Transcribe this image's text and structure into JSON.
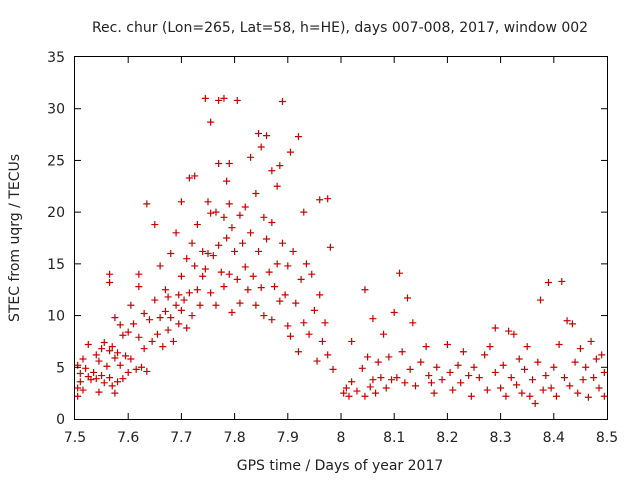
{
  "chart_data": {
    "type": "scatter",
    "title": "Rec. chur (Lon=265, Lat=58, h=HE), days 007-008, 2017, window 002",
    "xlabel": "GPS time / Days of year 2017",
    "ylabel": "STEC from uqrg / TECUs",
    "xlim": [
      7.5,
      8.5
    ],
    "ylim": [
      0,
      35
    ],
    "xticks": [
      7.5,
      7.6,
      7.7,
      7.8,
      7.9,
      8.0,
      8.1,
      8.2,
      8.3,
      8.4,
      8.5
    ],
    "xtick_labels": [
      "7.5",
      "7.6",
      "7.7",
      "7.8",
      "7.9",
      "8",
      "8.1",
      "8.2",
      "8.3",
      "8.4",
      "8.5"
    ],
    "yticks": [
      0,
      5,
      10,
      15,
      20,
      25,
      30,
      35
    ],
    "ytick_labels": [
      "0",
      "5",
      "10",
      "15",
      "20",
      "25",
      "30",
      "35"
    ],
    "grid": false,
    "marker": "plus",
    "color": "#cc0000",
    "series": [
      {
        "name": "STEC",
        "points": [
          [
            7.505,
            5.2
          ],
          [
            7.505,
            3.0
          ],
          [
            7.505,
            2.2
          ],
          [
            7.51,
            4.4
          ],
          [
            7.51,
            3.6
          ],
          [
            7.515,
            5.8
          ],
          [
            7.515,
            2.8
          ],
          [
            7.52,
            4.9
          ],
          [
            7.525,
            7.2
          ],
          [
            7.525,
            4.1
          ],
          [
            7.53,
            3.8
          ],
          [
            7.535,
            4.5
          ],
          [
            7.54,
            6.2
          ],
          [
            7.54,
            3.9
          ],
          [
            7.545,
            5.6
          ],
          [
            7.545,
            2.6
          ],
          [
            7.55,
            6.8
          ],
          [
            7.55,
            4.2
          ],
          [
            7.555,
            7.4
          ],
          [
            7.555,
            3.5
          ],
          [
            7.56,
            5.1
          ],
          [
            7.565,
            14.0
          ],
          [
            7.565,
            13.2
          ],
          [
            7.565,
            6.6
          ],
          [
            7.565,
            4.0
          ],
          [
            7.57,
            7.0
          ],
          [
            7.57,
            3.2
          ],
          [
            7.575,
            9.8
          ],
          [
            7.575,
            5.9
          ],
          [
            7.575,
            2.5
          ],
          [
            7.58,
            6.4
          ],
          [
            7.58,
            3.6
          ],
          [
            7.585,
            9.1
          ],
          [
            7.585,
            5.2
          ],
          [
            7.59,
            8.1
          ],
          [
            7.59,
            3.9
          ],
          [
            7.595,
            6.1
          ],
          [
            7.6,
            8.4
          ],
          [
            7.6,
            4.5
          ],
          [
            7.605,
            11.0
          ],
          [
            7.605,
            5.8
          ],
          [
            7.61,
            9.2
          ],
          [
            7.615,
            4.8
          ],
          [
            7.62,
            14.0
          ],
          [
            7.62,
            12.8
          ],
          [
            7.62,
            7.9
          ],
          [
            7.625,
            5.0
          ],
          [
            7.63,
            10.2
          ],
          [
            7.63,
            6.8
          ],
          [
            7.635,
            20.8
          ],
          [
            7.635,
            4.6
          ],
          [
            7.64,
            9.6
          ],
          [
            7.645,
            7.5
          ],
          [
            7.65,
            18.8
          ],
          [
            7.65,
            11.5
          ],
          [
            7.655,
            8.2
          ],
          [
            7.66,
            14.8
          ],
          [
            7.66,
            9.8
          ],
          [
            7.665,
            7.0
          ],
          [
            7.67,
            12.5
          ],
          [
            7.67,
            10.4
          ],
          [
            7.675,
            11.8
          ],
          [
            7.675,
            8.6
          ],
          [
            7.68,
            16.0
          ],
          [
            7.68,
            9.8
          ],
          [
            7.685,
            7.5
          ],
          [
            7.69,
            18.0
          ],
          [
            7.69,
            11.0
          ],
          [
            7.695,
            12.0
          ],
          [
            7.695,
            9.2
          ],
          [
            7.7,
            21.0
          ],
          [
            7.7,
            13.8
          ],
          [
            7.7,
            10.5
          ],
          [
            7.705,
            11.5
          ],
          [
            7.71,
            15.5
          ],
          [
            7.71,
            8.8
          ],
          [
            7.715,
            23.3
          ],
          [
            7.715,
            12.2
          ],
          [
            7.72,
            17.0
          ],
          [
            7.72,
            10.0
          ],
          [
            7.725,
            23.5
          ],
          [
            7.725,
            14.8
          ],
          [
            7.73,
            18.8
          ],
          [
            7.73,
            12.5
          ],
          [
            7.735,
            11.0
          ],
          [
            7.74,
            16.2
          ],
          [
            7.74,
            13.8
          ],
          [
            7.745,
            31.0
          ],
          [
            7.745,
            14.5
          ],
          [
            7.75,
            21.0
          ],
          [
            7.75,
            16.0
          ],
          [
            7.755,
            28.7
          ],
          [
            7.755,
            19.9
          ],
          [
            7.755,
            12.2
          ],
          [
            7.76,
            15.8
          ],
          [
            7.765,
            20.0
          ],
          [
            7.765,
            11.0
          ],
          [
            7.77,
            30.8
          ],
          [
            7.77,
            24.7
          ],
          [
            7.77,
            16.8
          ],
          [
            7.775,
            14.2
          ],
          [
            7.78,
            31.0
          ],
          [
            7.78,
            19.5
          ],
          [
            7.78,
            12.8
          ],
          [
            7.785,
            23.0
          ],
          [
            7.785,
            17.5
          ],
          [
            7.79,
            24.7
          ],
          [
            7.79,
            20.8
          ],
          [
            7.79,
            14.0
          ],
          [
            7.795,
            18.5
          ],
          [
            7.795,
            10.3
          ],
          [
            7.8,
            16.2
          ],
          [
            7.805,
            30.8
          ],
          [
            7.805,
            13.5
          ],
          [
            7.81,
            19.7
          ],
          [
            7.81,
            11.2
          ],
          [
            7.815,
            17.0
          ],
          [
            7.82,
            20.5
          ],
          [
            7.82,
            14.7
          ],
          [
            7.825,
            12.5
          ],
          [
            7.83,
            25.3
          ],
          [
            7.83,
            18.0
          ],
          [
            7.835,
            13.8
          ],
          [
            7.84,
            21.8
          ],
          [
            7.84,
            11.0
          ],
          [
            7.845,
            27.6
          ],
          [
            7.845,
            16.2
          ],
          [
            7.85,
            26.3
          ],
          [
            7.85,
            12.7
          ],
          [
            7.855,
            19.5
          ],
          [
            7.855,
            10.0
          ],
          [
            7.86,
            27.4
          ],
          [
            7.86,
            17.4
          ],
          [
            7.865,
            14.2
          ],
          [
            7.87,
            24.0
          ],
          [
            7.87,
            19.0
          ],
          [
            7.87,
            9.6
          ],
          [
            7.875,
            12.8
          ],
          [
            7.88,
            22.5
          ],
          [
            7.88,
            15.0
          ],
          [
            7.885,
            24.5
          ],
          [
            7.885,
            11.4
          ],
          [
            7.89,
            30.7
          ],
          [
            7.89,
            17.0
          ],
          [
            7.895,
            12.0
          ],
          [
            7.9,
            14.8
          ],
          [
            7.9,
            9.0
          ],
          [
            7.905,
            25.8
          ],
          [
            7.905,
            8.0
          ],
          [
            7.91,
            16.2
          ],
          [
            7.915,
            11.2
          ],
          [
            7.92,
            27.3
          ],
          [
            7.92,
            6.5
          ],
          [
            7.925,
            13.5
          ],
          [
            7.93,
            20.0
          ],
          [
            7.93,
            9.3
          ],
          [
            7.935,
            15.0
          ],
          [
            7.94,
            8.2
          ],
          [
            7.945,
            14.0
          ],
          [
            7.95,
            10.5
          ],
          [
            7.955,
            5.6
          ],
          [
            7.96,
            21.2
          ],
          [
            7.96,
            12.0
          ],
          [
            7.965,
            7.5
          ],
          [
            7.97,
            9.3
          ],
          [
            7.975,
            21.3
          ],
          [
            7.975,
            6.2
          ],
          [
            7.98,
            16.6
          ],
          [
            7.985,
            4.8
          ],
          [
            8.005,
            2.5
          ],
          [
            8.01,
            3.0
          ],
          [
            8.015,
            2.2
          ],
          [
            8.02,
            7.5
          ],
          [
            8.02,
            3.6
          ],
          [
            8.03,
            2.7
          ],
          [
            8.04,
            4.9
          ],
          [
            8.045,
            12.5
          ],
          [
            8.045,
            2.2
          ],
          [
            8.05,
            6.0
          ],
          [
            8.055,
            3.1
          ],
          [
            8.06,
            9.7
          ],
          [
            8.06,
            3.8
          ],
          [
            8.065,
            2.5
          ],
          [
            8.07,
            5.5
          ],
          [
            8.075,
            4.0
          ],
          [
            8.08,
            8.2
          ],
          [
            8.085,
            3.0
          ],
          [
            8.09,
            6.0
          ],
          [
            8.095,
            3.8
          ],
          [
            8.1,
            10.3
          ],
          [
            8.105,
            4.0
          ],
          [
            8.11,
            14.1
          ],
          [
            8.115,
            6.5
          ],
          [
            8.12,
            3.5
          ],
          [
            8.125,
            11.7
          ],
          [
            8.13,
            4.8
          ],
          [
            8.135,
            9.3
          ],
          [
            8.14,
            3.2
          ],
          [
            8.15,
            5.5
          ],
          [
            8.16,
            7.0
          ],
          [
            8.165,
            4.2
          ],
          [
            8.17,
            3.5
          ],
          [
            8.175,
            2.5
          ],
          [
            8.18,
            5.0
          ],
          [
            8.19,
            3.8
          ],
          [
            8.2,
            7.2
          ],
          [
            8.205,
            4.5
          ],
          [
            8.21,
            2.8
          ],
          [
            8.22,
            5.2
          ],
          [
            8.225,
            3.5
          ],
          [
            8.23,
            6.5
          ],
          [
            8.24,
            4.2
          ],
          [
            8.245,
            2.2
          ],
          [
            8.25,
            5.0
          ],
          [
            8.26,
            4.0
          ],
          [
            8.27,
            6.2
          ],
          [
            8.275,
            2.8
          ],
          [
            8.28,
            7.0
          ],
          [
            8.29,
            8.8
          ],
          [
            8.29,
            4.5
          ],
          [
            8.3,
            3.0
          ],
          [
            8.305,
            5.2
          ],
          [
            8.31,
            2.2
          ],
          [
            8.315,
            8.5
          ],
          [
            8.32,
            4.0
          ],
          [
            8.325,
            8.2
          ],
          [
            8.33,
            3.3
          ],
          [
            8.335,
            5.8
          ],
          [
            8.34,
            2.5
          ],
          [
            8.345,
            4.8
          ],
          [
            8.35,
            7.0
          ],
          [
            8.355,
            2.2
          ],
          [
            8.36,
            3.8
          ],
          [
            8.365,
            1.5
          ],
          [
            8.37,
            5.5
          ],
          [
            8.375,
            11.5
          ],
          [
            8.38,
            2.8
          ],
          [
            8.385,
            4.2
          ],
          [
            8.39,
            13.2
          ],
          [
            8.395,
            3.0
          ],
          [
            8.4,
            5.0
          ],
          [
            8.405,
            2.2
          ],
          [
            8.41,
            7.2
          ],
          [
            8.415,
            13.3
          ],
          [
            8.42,
            4.0
          ],
          [
            8.425,
            9.5
          ],
          [
            8.43,
            3.2
          ],
          [
            8.435,
            9.2
          ],
          [
            8.44,
            5.5
          ],
          [
            8.445,
            2.5
          ],
          [
            8.45,
            6.8
          ],
          [
            8.455,
            3.8
          ],
          [
            8.46,
            5.0
          ],
          [
            8.465,
            2.1
          ],
          [
            8.47,
            7.5
          ],
          [
            8.475,
            4.0
          ],
          [
            8.48,
            5.8
          ],
          [
            8.485,
            3.0
          ],
          [
            8.49,
            6.2
          ],
          [
            8.495,
            4.5
          ],
          [
            8.495,
            2.2
          ]
        ]
      }
    ]
  }
}
